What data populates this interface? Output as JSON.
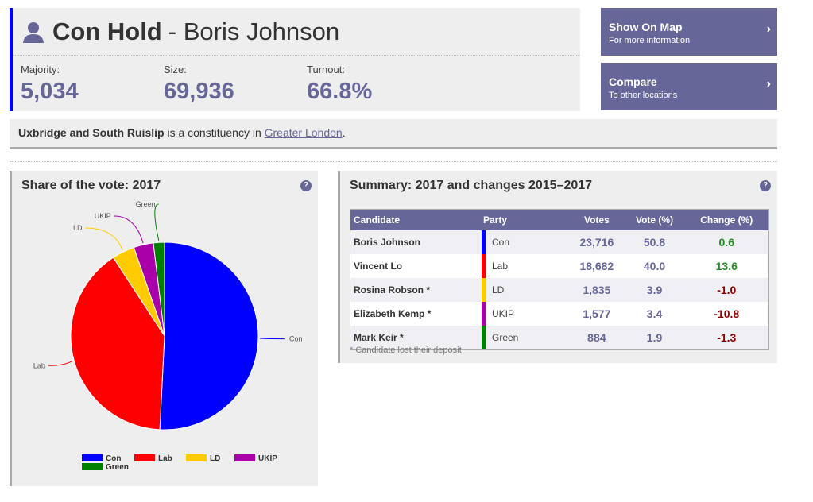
{
  "header": {
    "result": "Con Hold",
    "separator": " - ",
    "winner": "Boris Johnson",
    "party_color": "#0000ff",
    "stats": [
      {
        "label": "Majority:",
        "value": "5,034"
      },
      {
        "label": "Size:",
        "value": "69,936"
      },
      {
        "label": "Turnout:",
        "value": "66.8%"
      }
    ]
  },
  "buttons": [
    {
      "title": "Show On Map",
      "sub": "For more information"
    },
    {
      "title": "Compare",
      "sub": "To other locations"
    }
  ],
  "info": {
    "constituency": "Uxbridge and South Ruislip",
    "text": " is a constituency in ",
    "region": "Greater London",
    "end": "."
  },
  "share": {
    "title": "Share of the vote: 2017",
    "help": "?"
  },
  "summary": {
    "title": "Summary: 2017 and changes 2015–2017",
    "help": "?",
    "columns": [
      "Candidate",
      "Party",
      "Votes",
      "Vote (%)",
      "Change (%)"
    ],
    "rows": [
      {
        "name": "Boris Johnson",
        "party": "Con",
        "color": "#0000ff",
        "votes": "23,716",
        "pct": "50.8",
        "change": "0.6"
      },
      {
        "name": "Vincent Lo",
        "party": "Lab",
        "color": "#ff0000",
        "votes": "18,682",
        "pct": "40.0",
        "change": "13.6"
      },
      {
        "name": "Rosina Robson *",
        "party": "LD",
        "color": "#ffcc00",
        "votes": "1,835",
        "pct": "3.9",
        "change": "-1.0"
      },
      {
        "name": "Elizabeth Kemp *",
        "party": "UKIP",
        "color": "#aa00aa",
        "votes": "1,577",
        "pct": "3.4",
        "change": "-10.8"
      },
      {
        "name": "Mark Keir *",
        "party": "Green",
        "color": "#008000",
        "votes": "884",
        "pct": "1.9",
        "change": "-1.3"
      }
    ],
    "footnote": "* Candidate lost their deposit"
  },
  "chart_data": {
    "type": "pie",
    "title": "Share of the vote: 2017",
    "categories": [
      "Con",
      "Lab",
      "LD",
      "UKIP",
      "Green"
    ],
    "values": [
      50.8,
      40.0,
      3.9,
      3.4,
      1.9
    ],
    "colors": [
      "#0000ff",
      "#ff0000",
      "#ffcc00",
      "#aa00aa",
      "#008000"
    ],
    "legend": "bottom"
  }
}
